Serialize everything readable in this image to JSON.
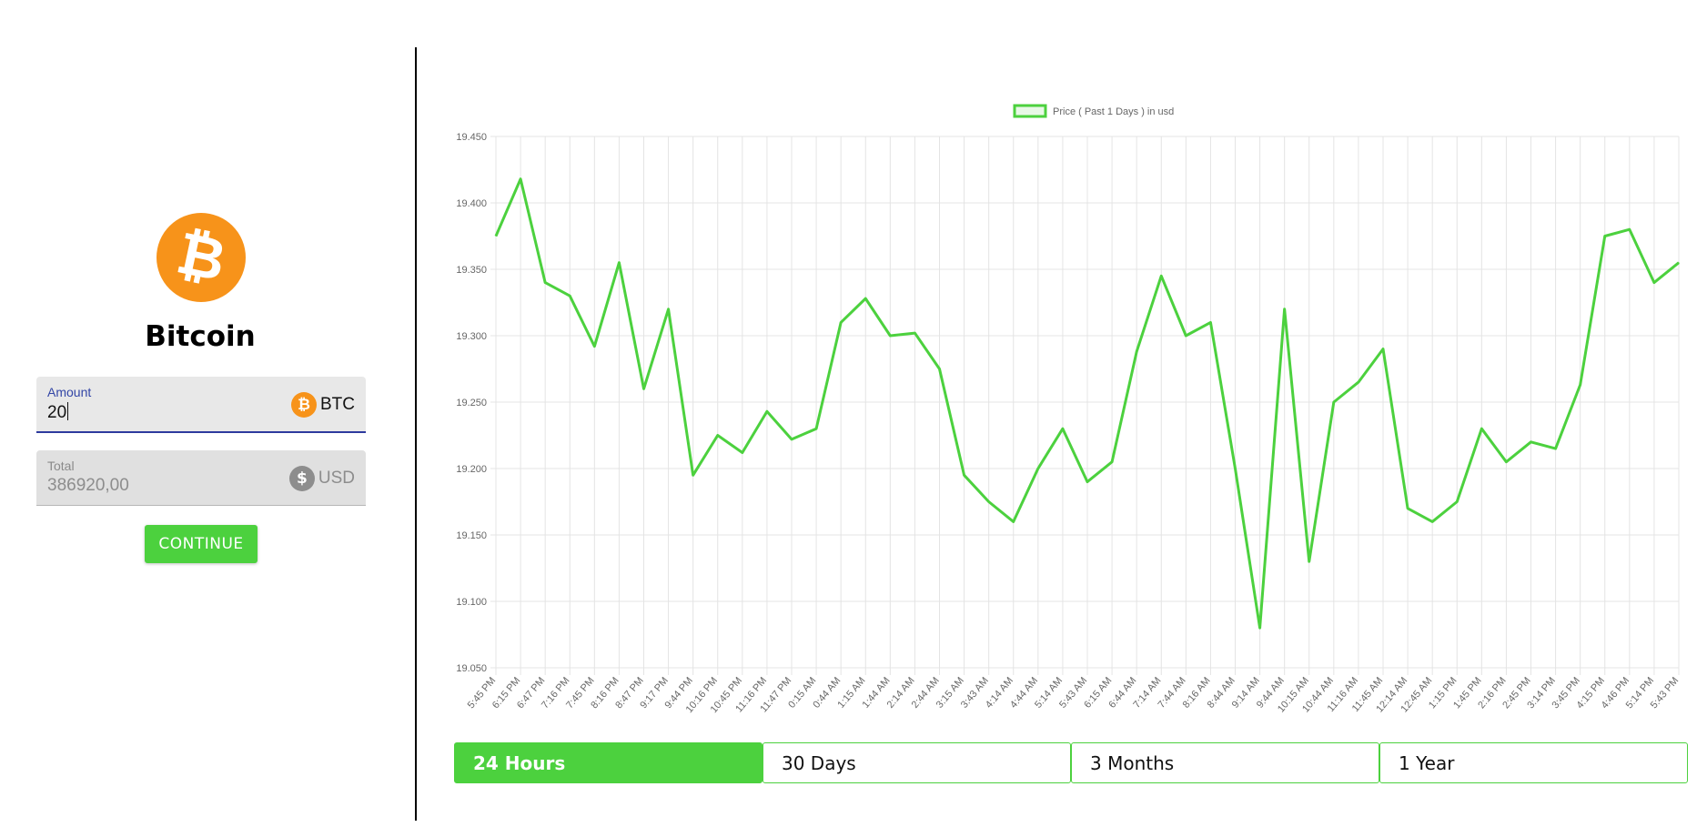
{
  "coin": {
    "name": "Bitcoin",
    "icon": "bitcoin-icon",
    "color": "#f7931a"
  },
  "amount_field": {
    "label": "Amount",
    "value": "20",
    "unit": "BTC",
    "icon": "bitcoin-icon"
  },
  "total_field": {
    "label": "Total",
    "value": "386920,00",
    "unit": "USD",
    "icon": "dollar-icon"
  },
  "continue_button": {
    "label": "CONTINUE",
    "color": "#4cd13e"
  },
  "range_tabs": [
    {
      "label": "24 Hours",
      "active": true
    },
    {
      "label": "30 Days",
      "active": false
    },
    {
      "label": "3 Months",
      "active": false
    },
    {
      "label": "1 Year",
      "active": false
    }
  ],
  "chart_data": {
    "type": "line",
    "legend": "Price ( Past 1 Days ) in usd",
    "legend_position": "top-center",
    "grid": true,
    "line_color": "#4cd13e",
    "ylim": [
      19.05,
      19.45
    ],
    "yticks": [
      "19.450",
      "19.400",
      "19.350",
      "19.300",
      "19.250",
      "19.200",
      "19.150",
      "19.100",
      "19.050"
    ],
    "x": [
      "5:45 PM",
      "6:15 PM",
      "6:47 PM",
      "7:16 PM",
      "7:45 PM",
      "8:16 PM",
      "8:47 PM",
      "9:17 PM",
      "9:44 PM",
      "10:16 PM",
      "10:45 PM",
      "11:16 PM",
      "11:47 PM",
      "0:15 AM",
      "0:44 AM",
      "1:15 AM",
      "1:44 AM",
      "2:14 AM",
      "2:44 AM",
      "3:15 AM",
      "3:43 AM",
      "4:14 AM",
      "4:44 AM",
      "5:14 AM",
      "5:43 AM",
      "6:15 AM",
      "6:44 AM",
      "7:14 AM",
      "7:44 AM",
      "8:16 AM",
      "8:44 AM",
      "9:14 AM",
      "9:44 AM",
      "10:15 AM",
      "10:44 AM",
      "11:16 AM",
      "11:45 AM",
      "12:14 AM",
      "12:45 AM",
      "1:15 PM",
      "1:45 PM",
      "2:16 PM",
      "2:45 PM",
      "3:14 PM",
      "3:45 PM",
      "4:15 PM",
      "4:46 PM",
      "5:14 PM",
      "5:43 PM"
    ],
    "values": [
      19.375,
      19.418,
      19.34,
      19.33,
      19.292,
      19.355,
      19.26,
      19.32,
      19.195,
      19.225,
      19.212,
      19.243,
      19.222,
      19.23,
      19.31,
      19.328,
      19.3,
      19.302,
      19.275,
      19.195,
      19.175,
      19.16,
      19.2,
      19.23,
      19.19,
      19.205,
      19.288,
      19.345,
      19.3,
      19.31,
      19.2,
      19.08,
      19.32,
      19.13,
      19.25,
      19.265,
      19.29,
      19.17,
      19.16,
      19.175,
      19.23,
      19.205,
      19.22,
      19.215,
      19.263,
      19.375,
      19.38,
      19.34,
      19.355
    ]
  }
}
